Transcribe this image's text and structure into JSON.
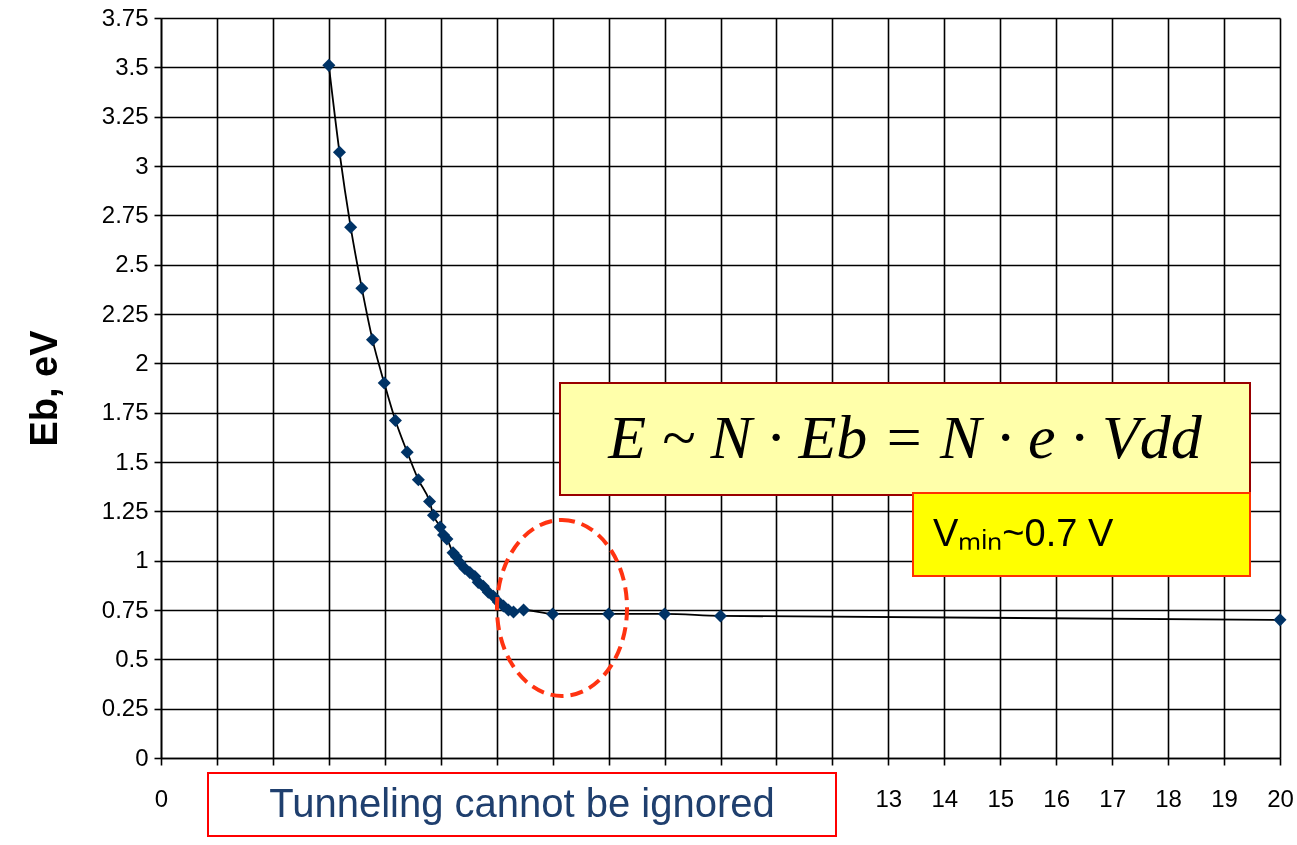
{
  "chart_data": {
    "type": "line",
    "ylabel": "Eb, eV",
    "xlim": [
      0,
      20
    ],
    "xticks": [
      0,
      {
        "value": 1,
        "label": null
      },
      {
        "value": 2,
        "label": null
      },
      {
        "value": 3,
        "label": null
      },
      {
        "value": 4,
        "label": null
      },
      {
        "value": 5,
        "label": null
      },
      {
        "value": 6,
        "label": null
      },
      {
        "value": 7,
        "label": null
      },
      {
        "value": 8,
        "label": null
      },
      {
        "value": 9,
        "label": null
      },
      {
        "value": 10,
        "label": null
      },
      {
        "value": 11,
        "label": null
      },
      {
        "value": 12,
        "label": null
      },
      13,
      14,
      15,
      16,
      17,
      18,
      19,
      20
    ],
    "ylim": [
      0,
      3.75
    ],
    "yticks": [
      0,
      0.25,
      0.5,
      0.75,
      1,
      1.25,
      1.5,
      1.75,
      2,
      2.25,
      2.5,
      2.75,
      3,
      3.25,
      3.5,
      3.75
    ],
    "grid": true,
    "series": [
      {
        "type": "line",
        "color": "#000000",
        "line_style": "solid",
        "x": [
          3.0,
          3.19,
          3.39,
          3.59,
          3.78,
          3.99,
          4.19,
          4.4,
          4.6,
          4.8,
          4.87,
          4.99,
          5.05,
          5.11,
          5.22,
          5.28,
          5.34,
          5.43,
          5.52,
          5.61,
          5.67,
          5.76,
          5.85,
          5.94,
          6.03,
          6.12,
          6.21,
          6.3,
          6.48,
          7.0,
          8.0,
          9.0,
          10.0,
          20.0
        ],
        "values": [
          3.51,
          3.07,
          2.69,
          2.38,
          2.12,
          1.9,
          1.71,
          1.55,
          1.41,
          1.3,
          1.23,
          1.17,
          1.13,
          1.11,
          1.04,
          1.02,
          0.99,
          0.96,
          0.94,
          0.92,
          0.89,
          0.87,
          0.84,
          0.82,
          0.79,
          0.77,
          0.75,
          0.74,
          0.75,
          0.73,
          0.73,
          0.73,
          0.72,
          0.7
        ]
      },
      {
        "type": "scatter",
        "color": "#003366",
        "marker": "diamond",
        "x": [
          3.0,
          3.19,
          3.39,
          3.59,
          3.78,
          3.99,
          4.19,
          4.4,
          4.6,
          4.8,
          4.87,
          4.99,
          5.05,
          5.11,
          5.22,
          5.28,
          5.34,
          5.43,
          5.52,
          5.61,
          5.67,
          5.76,
          5.85,
          5.94,
          6.03,
          6.12,
          6.21,
          6.3,
          6.48,
          7.0,
          8.0,
          9.0,
          10.0,
          20.0
        ],
        "values": [
          3.51,
          3.07,
          2.69,
          2.38,
          2.12,
          1.9,
          1.71,
          1.55,
          1.41,
          1.3,
          1.23,
          1.17,
          1.13,
          1.11,
          1.04,
          1.02,
          0.99,
          0.96,
          0.94,
          0.92,
          0.89,
          0.87,
          0.84,
          0.82,
          0.79,
          0.77,
          0.75,
          0.74,
          0.75,
          0.73,
          0.73,
          0.73,
          0.72,
          0.7
        ]
      }
    ],
    "annotations": [
      "E ~ N · Eb = N · e · Vdd",
      "Vₘᵢₙ~0.7 V",
      "Tunneling cannot be ignored"
    ]
  }
}
